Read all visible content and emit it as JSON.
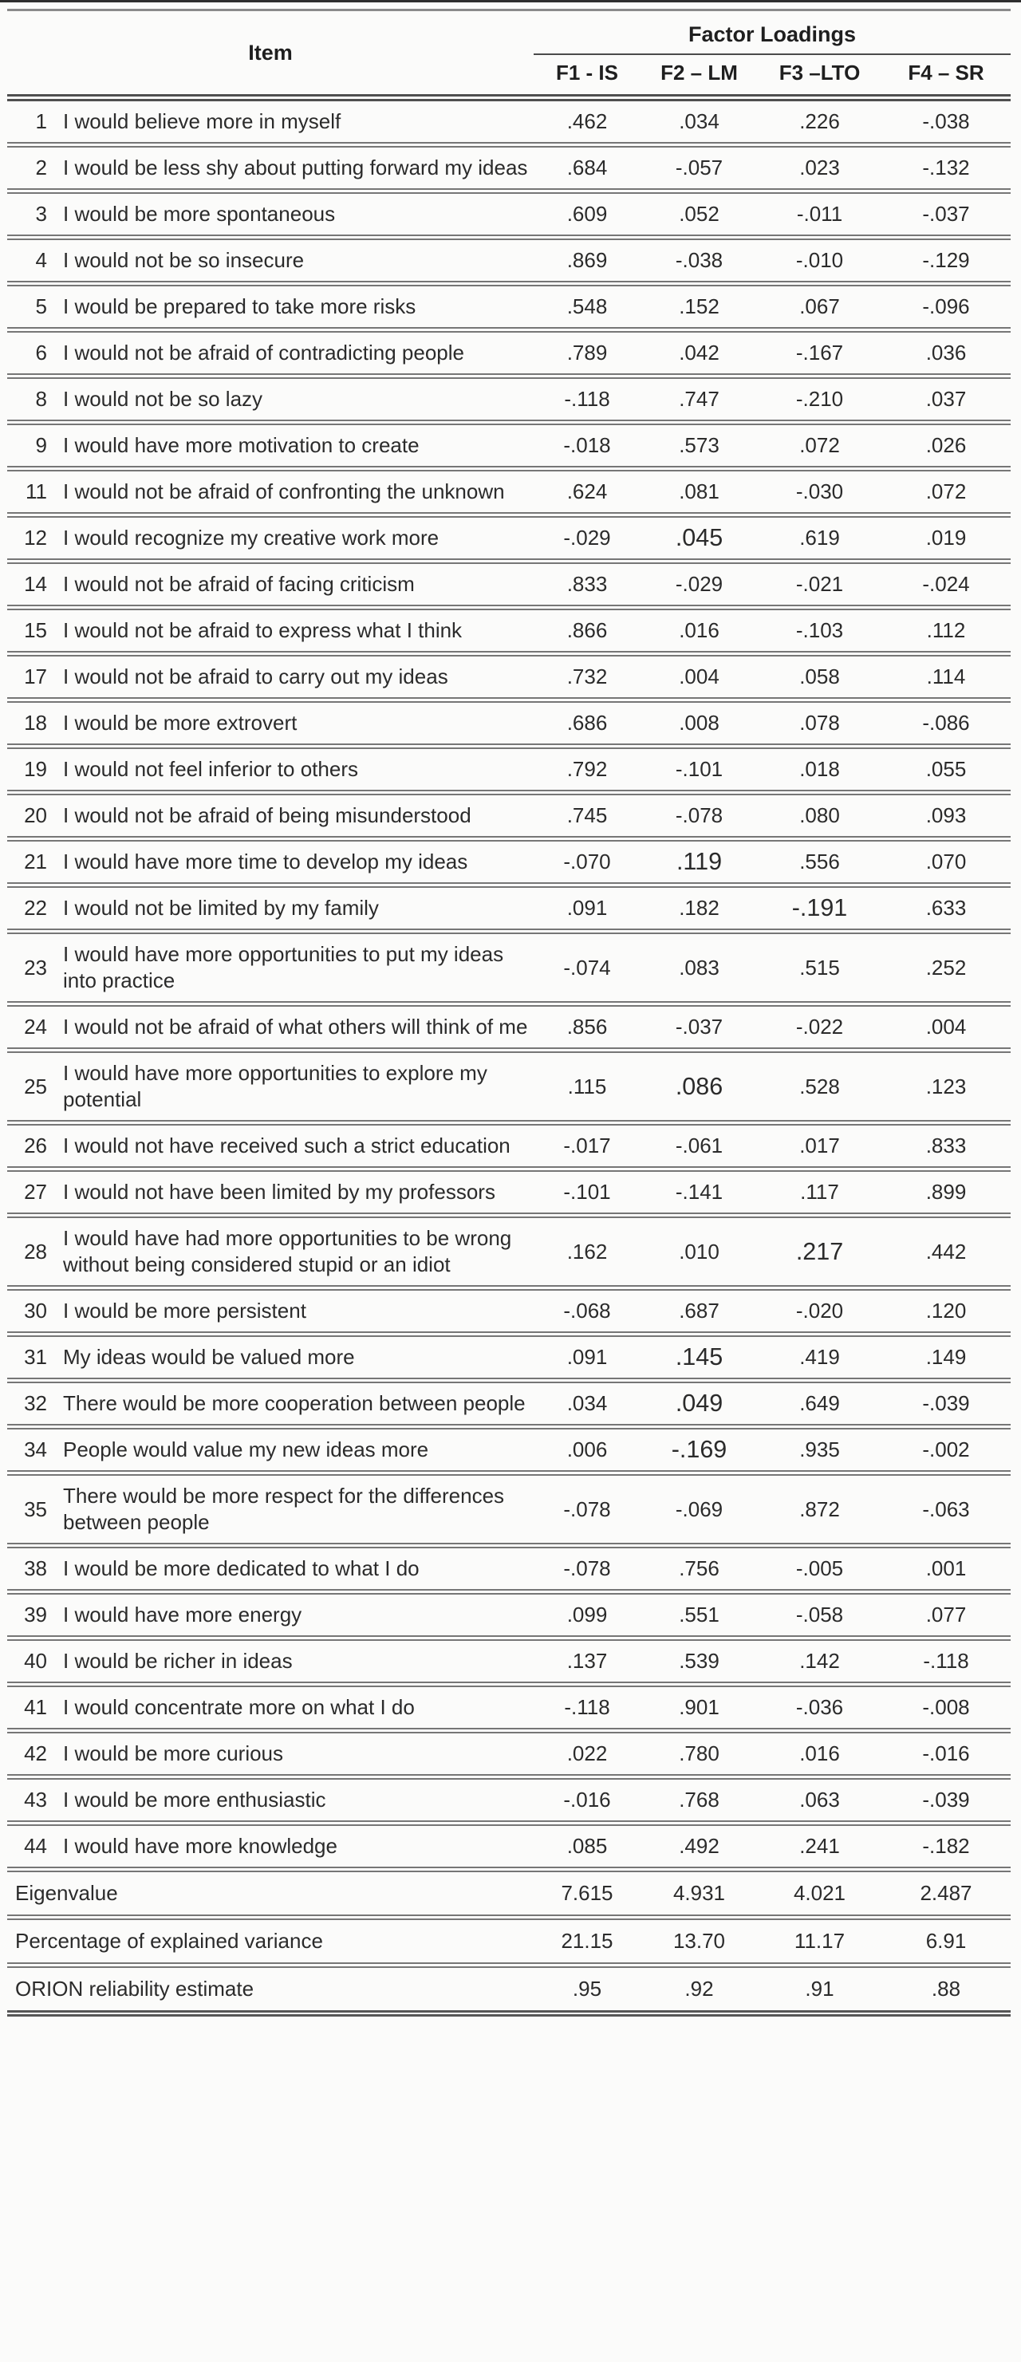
{
  "table": {
    "item_header": "Item",
    "group_header": "Factor Loadings",
    "columns": [
      "F1 - IS",
      "F2 – LM",
      "F3 –LTO",
      "F4 – SR"
    ],
    "rows": [
      {
        "num": "1",
        "text": "I would believe more in myself",
        "values": [
          ".462",
          ".034",
          ".226",
          "-.038"
        ],
        "big": []
      },
      {
        "num": "2",
        "text": "I would be less shy about putting forward my ideas",
        "values": [
          ".684",
          "-.057",
          ".023",
          "-.132"
        ],
        "big": []
      },
      {
        "num": "3",
        "text": "I would be more spontaneous",
        "values": [
          ".609",
          ".052",
          "-.011",
          "-.037"
        ],
        "big": []
      },
      {
        "num": "4",
        "text": "I would not be so insecure",
        "values": [
          ".869",
          "-.038",
          "-.010",
          "-.129"
        ],
        "big": []
      },
      {
        "num": "5",
        "text": "I would be prepared to take more risks",
        "values": [
          ".548",
          ".152",
          ".067",
          "-.096"
        ],
        "big": []
      },
      {
        "num": "6",
        "text": "I would not be afraid of contradicting people",
        "values": [
          ".789",
          ".042",
          "-.167",
          ".036"
        ],
        "big": []
      },
      {
        "num": "8",
        "text": "I would not be so lazy",
        "values": [
          "-.118",
          ".747",
          "-.210",
          ".037"
        ],
        "big": []
      },
      {
        "num": "9",
        "text": "I would have more motivation to create",
        "values": [
          "-.018",
          ".573",
          ".072",
          ".026"
        ],
        "big": []
      },
      {
        "num": "11",
        "text": "I would not be afraid of confronting the unknown",
        "values": [
          ".624",
          ".081",
          "-.030",
          ".072"
        ],
        "big": []
      },
      {
        "num": "12",
        "text": "I would recognize my creative work more",
        "values": [
          "-.029",
          ".045",
          ".619",
          ".019"
        ],
        "big": [
          1
        ]
      },
      {
        "num": "14",
        "text": "I would not be afraid of facing criticism",
        "values": [
          ".833",
          "-.029",
          "-.021",
          "-.024"
        ],
        "big": []
      },
      {
        "num": "15",
        "text": "I would not be afraid to express what I think",
        "values": [
          ".866",
          ".016",
          "-.103",
          ".112"
        ],
        "big": []
      },
      {
        "num": "17",
        "text": "I would not be afraid to carry out my ideas",
        "values": [
          ".732",
          ".004",
          ".058",
          ".114"
        ],
        "big": []
      },
      {
        "num": "18",
        "text": "I would be more extrovert",
        "values": [
          ".686",
          ".008",
          ".078",
          "-.086"
        ],
        "big": []
      },
      {
        "num": "19",
        "text": "I would not feel inferior to others",
        "values": [
          ".792",
          "-.101",
          ".018",
          ".055"
        ],
        "big": []
      },
      {
        "num": "20",
        "text": "I would not be afraid of being misunderstood",
        "values": [
          ".745",
          "-.078",
          ".080",
          ".093"
        ],
        "big": []
      },
      {
        "num": "21",
        "text": "I would have more time to develop my ideas",
        "values": [
          "-.070",
          ".119",
          ".556",
          ".070"
        ],
        "big": [
          1
        ]
      },
      {
        "num": "22",
        "text": "I would not be limited by my family",
        "values": [
          ".091",
          ".182",
          "-.191",
          ".633"
        ],
        "big": [
          2
        ]
      },
      {
        "num": "23",
        "text": "I would have more opportunities to put my ideas into practice",
        "values": [
          "-.074",
          ".083",
          ".515",
          ".252"
        ],
        "big": []
      },
      {
        "num": "24",
        "text": "I would not be afraid of what others will think of me",
        "values": [
          ".856",
          "-.037",
          "-.022",
          ".004"
        ],
        "big": []
      },
      {
        "num": "25",
        "text": "I would have more opportunities to explore my potential",
        "values": [
          ".115",
          ".086",
          ".528",
          ".123"
        ],
        "big": [
          1
        ]
      },
      {
        "num": "26",
        "text": "I would not have received such a strict education",
        "values": [
          "-.017",
          "-.061",
          ".017",
          ".833"
        ],
        "big": []
      },
      {
        "num": "27",
        "text": "I would not have been limited by my professors",
        "values": [
          "-.101",
          "-.141",
          ".117",
          ".899"
        ],
        "big": []
      },
      {
        "num": "28",
        "text": "I would have had more opportunities to be wrong without being considered stupid or an idiot",
        "values": [
          ".162",
          ".010",
          ".217",
          ".442"
        ],
        "big": [
          2
        ]
      },
      {
        "num": "30",
        "text": "I would be more persistent",
        "values": [
          "-.068",
          ".687",
          "-.020",
          ".120"
        ],
        "big": []
      },
      {
        "num": "31",
        "text": "My ideas would be valued more",
        "values": [
          ".091",
          ".145",
          ".419",
          ".149"
        ],
        "big": [
          1
        ]
      },
      {
        "num": "32",
        "text": "There would be more cooperation between people",
        "values": [
          ".034",
          ".049",
          ".649",
          "-.039"
        ],
        "big": [
          1
        ]
      },
      {
        "num": "34",
        "text": "People would value my new ideas more",
        "values": [
          ".006",
          "-.169",
          ".935",
          "-.002"
        ],
        "big": [
          1
        ]
      },
      {
        "num": "35",
        "text": "There would be more respect for the differences between people",
        "values": [
          "-.078",
          "-.069",
          ".872",
          "-.063"
        ],
        "big": []
      },
      {
        "num": "38",
        "text": "I would be more dedicated to what I do",
        "values": [
          "-.078",
          ".756",
          "-.005",
          ".001"
        ],
        "big": []
      },
      {
        "num": "39",
        "text": "I would have more energy",
        "values": [
          ".099",
          ".551",
          "-.058",
          ".077"
        ],
        "big": []
      },
      {
        "num": "40",
        "text": "I would be richer in ideas",
        "values": [
          ".137",
          ".539",
          ".142",
          "-.118"
        ],
        "big": []
      },
      {
        "num": "41",
        "text": "I would concentrate more on what I do",
        "values": [
          "-.118",
          ".901",
          "-.036",
          "-.008"
        ],
        "big": []
      },
      {
        "num": "42",
        "text": "I would be more curious",
        "values": [
          ".022",
          ".780",
          ".016",
          "-.016"
        ],
        "big": []
      },
      {
        "num": "43",
        "text": "I would be more enthusiastic",
        "values": [
          "-.016",
          ".768",
          ".063",
          "-.039"
        ],
        "big": []
      },
      {
        "num": "44",
        "text": "I would have more knowledge",
        "values": [
          ".085",
          ".492",
          ".241",
          "-.182"
        ],
        "big": []
      }
    ],
    "footer": [
      {
        "label": "Eigenvalue",
        "values": [
          "7.615",
          "4.931",
          "4.021",
          "2.487"
        ]
      },
      {
        "label": "Percentage of explained variance",
        "values": [
          "21.15",
          "13.70",
          "11.17",
          "6.91"
        ]
      },
      {
        "label": "ORION reliability estimate",
        "values": [
          ".95",
          ".92",
          ".91",
          ".88"
        ]
      }
    ]
  },
  "colors": {
    "text": "#2b2b2b",
    "header_text": "#1f1f1f",
    "rule_light": "#767676",
    "rule_heavy": "#4f4f4f",
    "background": "#fbfbfa"
  }
}
